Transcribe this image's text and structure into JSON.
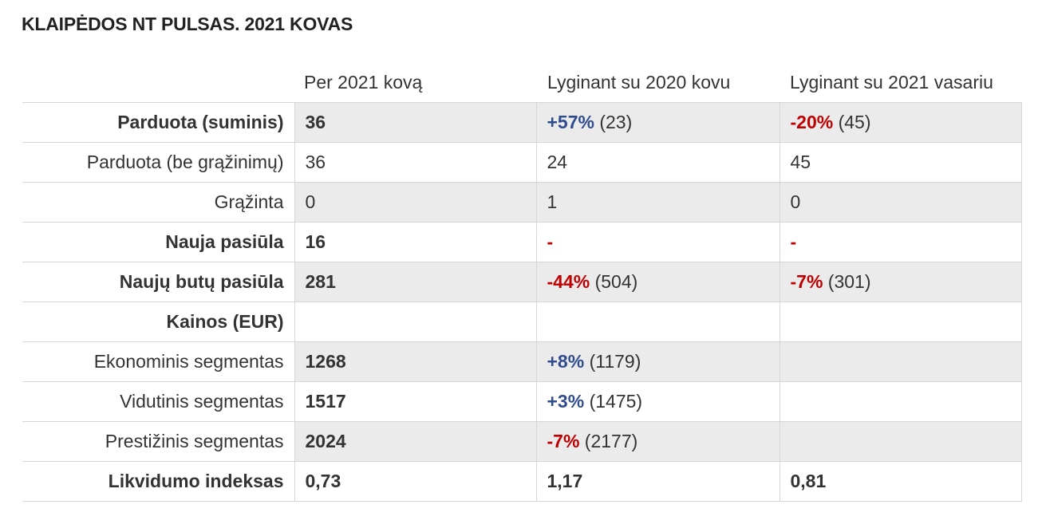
{
  "title": "KLAIPĖDOS NT PULSAS. 2021 KOVAS",
  "headers": [
    "Per 2021 kovą",
    "Lyginant su 2020 kovu",
    "Lyginant su 2021 vasariu"
  ],
  "rows": {
    "r0": {
      "label": "Parduota (suminis)",
      "v1": "36",
      "v2_change": "+57%",
      "v2_prev": "(23)",
      "v3_change": "-20%",
      "v3_prev": "(45)"
    },
    "r1": {
      "label": "Parduota (be grąžinimų)",
      "v1": "36",
      "v2": "24",
      "v3": "45"
    },
    "r2": {
      "label": "Grąžinta",
      "v1": "0",
      "v2": "1",
      "v3": "0"
    },
    "r3": {
      "label": "Nauja pasiūla",
      "v1": "16",
      "v2_change": "-",
      "v3_change": "-"
    },
    "r4": {
      "label": "Naujų butų pasiūla",
      "v1": "281",
      "v2_change": "-44%",
      "v2_prev": "(504)",
      "v3_change": "-7%",
      "v3_prev": "(301)"
    },
    "r5": {
      "label": "Kainos (EUR)"
    },
    "r6": {
      "label": "Ekonominis segmentas",
      "v1": "1268",
      "v2_change": "+8%",
      "v2_prev": "(1179)"
    },
    "r7": {
      "label": "Vidutinis segmentas",
      "v1": "1517",
      "v2_change": "+3%",
      "v2_prev": "(1475)"
    },
    "r8": {
      "label": "Prestižinis segmentas",
      "v1": "2024",
      "v2_change": "-7%",
      "v2_prev": "(2177)"
    },
    "r9": {
      "label": "Likvidumo indeksas",
      "v1": "0,73",
      "v2": "1,17",
      "v3": "0,81"
    }
  },
  "colors": {
    "positive": "#2f4d8e",
    "negative": "#c00000",
    "shade": "#ebebeb",
    "border": "#d6d6d6"
  }
}
